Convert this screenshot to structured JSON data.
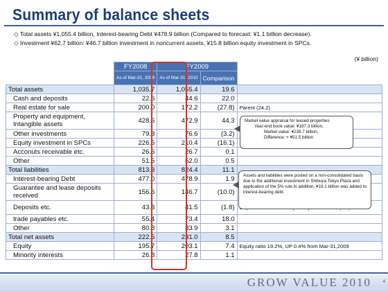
{
  "title": "Summary of balance sheets",
  "bullets": [
    "◇ Total assets ¥1,055.4 billion, Interest-bearing Debt ¥478.9 billion (Compared to forecast: ¥1.1 billion decrease).",
    "◇ Investment ¥62.7 billion: ¥46.7 billion investment in noncurrent assets, ¥15.8 billion equity investment in SPCs."
  ],
  "unit": "(¥ billion)",
  "header": {
    "fy2008": "FY2008",
    "fy2009": "FY2009",
    "col1": "As of Mar-31, 2009",
    "col2": "As of Mar-31, 2010",
    "col3": "Comparison"
  },
  "rows": [
    {
      "label": "Total assets",
      "v1": "1,035.7",
      "v2": "1,055.4",
      "cmp": "19.6",
      "note": "",
      "section": true
    },
    {
      "label": "Cash and deposits",
      "v1": "22.6",
      "v2": "44.6",
      "cmp": "22.0",
      "note": ""
    },
    {
      "label": "Real estate for sale",
      "v1": "200.0",
      "v2": "172.2",
      "cmp": "(27.8)",
      "note": "Parent (24.2)"
    },
    {
      "label": "Property and equipment, Intangible assets",
      "v1": "428.6",
      "v2": "472.9",
      "cmp": "44.3",
      "note": ""
    },
    {
      "label": "Other investments",
      "v1": "79.8",
      "v2": "76.6",
      "cmp": "(3.2)",
      "note": ""
    },
    {
      "label": "Equity investment in SPCs",
      "v1": "226.5",
      "v2": "210.4",
      "cmp": "(16.1)",
      "note": "Investment +15.8"
    },
    {
      "label": "Acconuts receivable etc.",
      "v1": "26.6",
      "v2": "26.7",
      "cmp": "0.1",
      "note": ""
    },
    {
      "label": "Other",
      "v1": "51.5",
      "v2": "52.0",
      "cmp": "0.5",
      "note": ""
    },
    {
      "label": "Total liabilities",
      "v1": "813.3",
      "v2": "824.4",
      "cmp": "11.1",
      "note": "",
      "section": true
    },
    {
      "label": "Interest-bearing Debt",
      "v1": "477.0",
      "v2": "478.9",
      "cmp": "1.9",
      "note": ""
    },
    {
      "label": "Guarantee and lease deposits received",
      "v1": "156.6",
      "v2": "146.7",
      "cmp": "(10.0)",
      "note": ""
    },
    {
      "label": "Deposits etc.",
      "v1": "43.3",
      "v2": "41.5",
      "cmp": "(1.8)",
      "note": "Deposits received for special joint ventures(3.3)"
    },
    {
      "label": "trade payables etc.",
      "v1": "55.4",
      "v2": "73.4",
      "cmp": "18.0",
      "note": ""
    },
    {
      "label": "Other",
      "v1": "80.8",
      "v2": "83.9",
      "cmp": "3.1",
      "note": ""
    },
    {
      "label": "Total net assets",
      "v1": "222.5",
      "v2": "231.0",
      "cmp": "8.5",
      "note": "",
      "section": true
    },
    {
      "label": "Equity",
      "v1": "195.7",
      "v2": "203.1",
      "cmp": "7.4",
      "note": "Equity ratio 19.2%, UP 0.4% from Mar-31,2009"
    },
    {
      "label": "Minority interests",
      "v1": "26.8",
      "v2": "27.8",
      "cmp": "1.1",
      "note": ""
    }
  ],
  "callout1": [
    "Market value appraisal for leased properties",
    "Year-end book value: ¥187.3 billion,",
    "Market value: ¥238.7 billion,",
    "Difference: + ¥51.5 billion"
  ],
  "callout2": "Assets and liabilities were posted on a non-consolidated basis due to the additional investment in Shibuya Tokyu Plaza and application of the 5% rule.In addition, ¥18.1 billion was added to interest-bearing debt.",
  "footer": {
    "brand": "GROW VALUE 2010",
    "page": "4"
  }
}
